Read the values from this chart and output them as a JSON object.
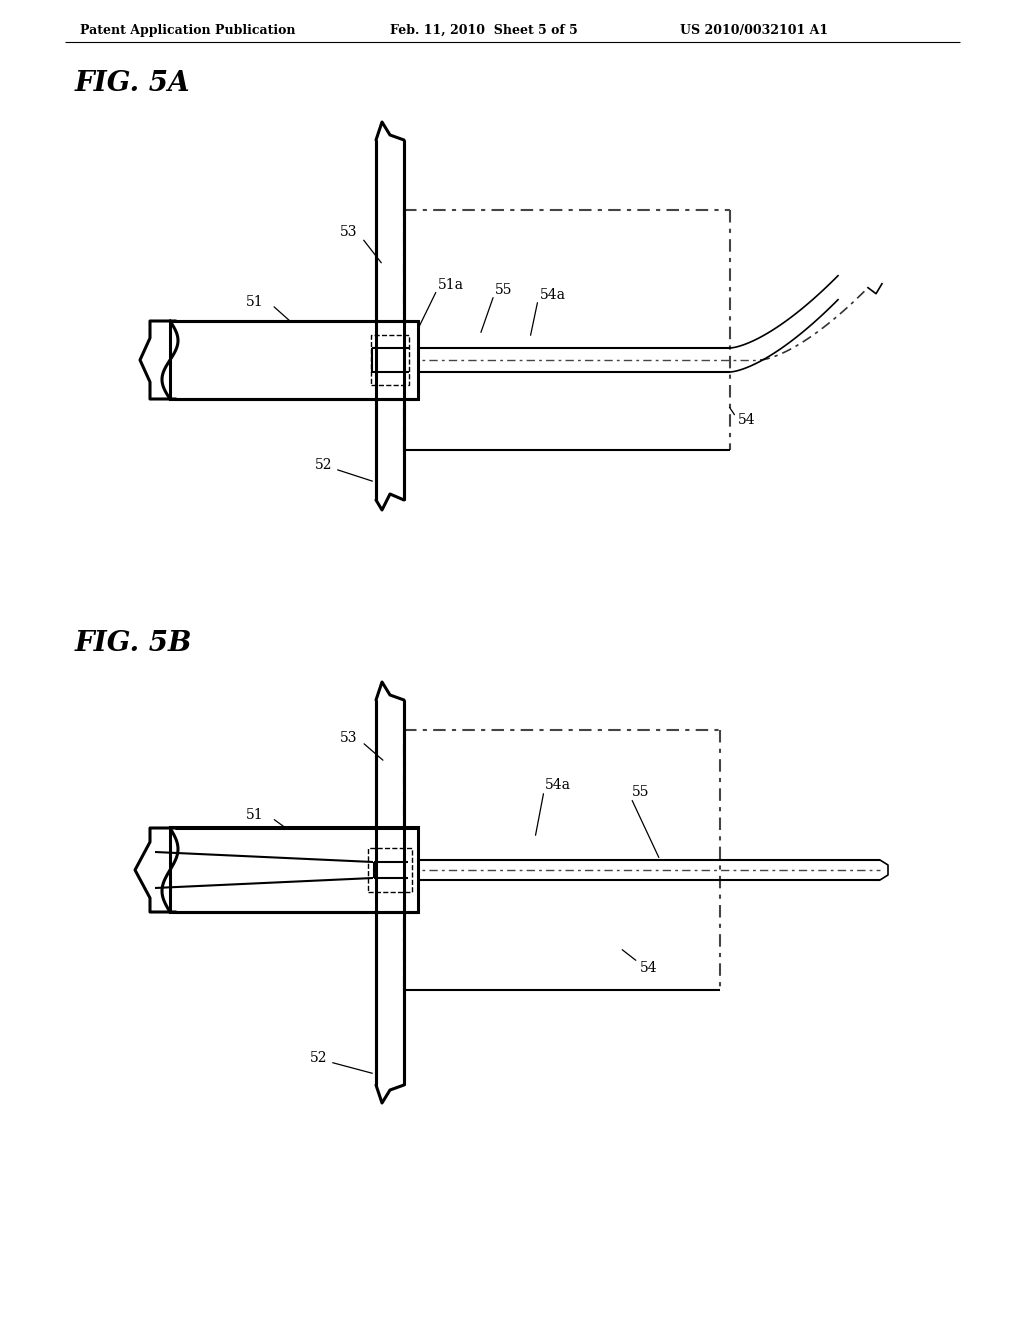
{
  "bg_color": "#ffffff",
  "header_text": "Patent Application Publication",
  "header_date": "Feb. 11, 2010  Sheet 5 of 5",
  "header_patent": "US 2010/0032101 A1",
  "fig5a_label": "FIG. 5A",
  "fig5b_label": "FIG. 5B",
  "line_color": "#000000",
  "lw_thick": 2.2,
  "lw_med": 1.5,
  "lw_thin": 1.0,
  "label_fs": 10
}
